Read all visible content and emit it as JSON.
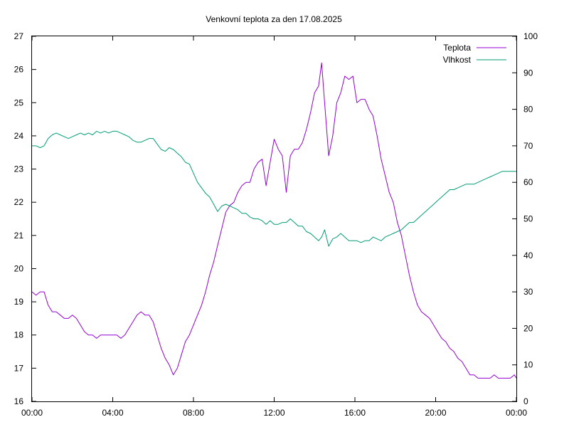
{
  "chart_data": {
    "type": "line",
    "title": "Venkovní teplota za den 17.08.2025",
    "xlabel": "",
    "ylabel": "",
    "y2label": "",
    "x_ticks": [
      "00:00",
      "04:00",
      "08:00",
      "12:00",
      "16:00",
      "20:00",
      "00:00"
    ],
    "xlim_hours": [
      0,
      24
    ],
    "ylim": [
      16,
      27
    ],
    "y_ticks": [
      16,
      17,
      18,
      19,
      20,
      21,
      22,
      23,
      24,
      25,
      26,
      27
    ],
    "y2lim": [
      0,
      100
    ],
    "y2_ticks": [
      0,
      10,
      20,
      30,
      40,
      50,
      60,
      70,
      80,
      90,
      100
    ],
    "grid": false,
    "legend_position": "top-right",
    "series": [
      {
        "name": "Teplota",
        "axis": "left",
        "color": "#9400d3",
        "x": [
          0,
          0.2,
          0.4,
          0.6,
          0.8,
          1.0,
          1.2,
          1.4,
          1.6,
          1.8,
          2.0,
          2.2,
          2.4,
          2.6,
          2.8,
          3.0,
          3.2,
          3.4,
          3.6,
          3.8,
          4.0,
          4.2,
          4.4,
          4.6,
          4.8,
          5.0,
          5.2,
          5.4,
          5.6,
          5.8,
          6.0,
          6.2,
          6.4,
          6.6,
          6.8,
          7.0,
          7.2,
          7.4,
          7.6,
          7.8,
          8.0,
          8.2,
          8.4,
          8.6,
          8.8,
          9.0,
          9.2,
          9.4,
          9.6,
          9.8,
          10.0,
          10.2,
          10.4,
          10.6,
          10.8,
          11.0,
          11.2,
          11.4,
          11.6,
          11.8,
          12.0,
          12.2,
          12.4,
          12.6,
          12.8,
          13.0,
          13.2,
          13.4,
          13.6,
          13.8,
          14.0,
          14.2,
          14.35,
          14.5,
          14.7,
          14.9,
          15.1,
          15.3,
          15.5,
          15.7,
          15.9,
          16.1,
          16.3,
          16.5,
          16.7,
          16.9,
          17.1,
          17.3,
          17.5,
          17.7,
          17.9,
          18.1,
          18.3,
          18.5,
          18.7,
          18.9,
          19.1,
          19.3,
          19.5,
          19.7,
          19.9,
          20.1,
          20.3,
          20.5,
          20.7,
          20.9,
          21.1,
          21.3,
          21.5,
          21.7,
          21.9,
          22.1,
          22.3,
          22.5,
          22.7,
          22.9,
          23.1,
          23.3,
          23.5,
          23.7,
          23.9,
          24.0
        ],
        "values": [
          19.3,
          19.2,
          19.3,
          19.3,
          18.9,
          18.7,
          18.7,
          18.6,
          18.5,
          18.5,
          18.6,
          18.5,
          18.3,
          18.1,
          18.0,
          18.0,
          17.9,
          18.0,
          18.0,
          18.0,
          18.0,
          18.0,
          17.9,
          18.0,
          18.2,
          18.4,
          18.6,
          18.7,
          18.6,
          18.6,
          18.4,
          18.0,
          17.6,
          17.3,
          17.1,
          16.8,
          17.0,
          17.4,
          17.8,
          18.0,
          18.3,
          18.6,
          18.9,
          19.3,
          19.8,
          20.2,
          20.7,
          21.2,
          21.7,
          21.9,
          22.0,
          22.3,
          22.5,
          22.6,
          22.6,
          23.0,
          23.2,
          23.3,
          22.5,
          23.2,
          23.9,
          23.6,
          23.4,
          22.3,
          23.4,
          23.6,
          23.6,
          23.8,
          24.2,
          24.7,
          25.3,
          25.5,
          26.2,
          25.0,
          23.4,
          24.0,
          25.0,
          25.3,
          25.8,
          25.7,
          25.8,
          25.0,
          25.1,
          25.1,
          24.8,
          24.6,
          24.0,
          23.3,
          22.8,
          22.3,
          22.0,
          21.4,
          21.0,
          20.4,
          19.8,
          19.3,
          18.9,
          18.7,
          18.6,
          18.5,
          18.3,
          18.1,
          17.9,
          17.8,
          17.6,
          17.5,
          17.3,
          17.2,
          17.0,
          16.8,
          16.8,
          16.7,
          16.7,
          16.7,
          16.7,
          16.8,
          16.7,
          16.7,
          16.7,
          16.7,
          16.8,
          16.7
        ],
        "label_type": "estimated"
      },
      {
        "name": "Vlhkost",
        "axis": "right",
        "color": "#009e73",
        "x": [
          0,
          0.2,
          0.4,
          0.6,
          0.8,
          1.0,
          1.2,
          1.4,
          1.6,
          1.8,
          2.0,
          2.2,
          2.4,
          2.6,
          2.8,
          3.0,
          3.2,
          3.4,
          3.6,
          3.8,
          4.0,
          4.2,
          4.4,
          4.6,
          4.8,
          5.0,
          5.2,
          5.4,
          5.6,
          5.8,
          6.0,
          6.2,
          6.4,
          6.6,
          6.8,
          7.0,
          7.2,
          7.4,
          7.6,
          7.8,
          8.0,
          8.2,
          8.4,
          8.6,
          8.8,
          9.0,
          9.2,
          9.4,
          9.6,
          9.8,
          10.0,
          10.2,
          10.4,
          10.6,
          10.8,
          11.0,
          11.2,
          11.4,
          11.6,
          11.8,
          12.0,
          12.2,
          12.4,
          12.6,
          12.8,
          13.0,
          13.2,
          13.4,
          13.6,
          13.8,
          14.0,
          14.2,
          14.35,
          14.5,
          14.7,
          14.9,
          15.1,
          15.3,
          15.5,
          15.7,
          15.9,
          16.1,
          16.3,
          16.5,
          16.7,
          16.9,
          17.1,
          17.3,
          17.5,
          17.7,
          17.9,
          18.1,
          18.3,
          18.5,
          18.7,
          18.9,
          19.1,
          19.3,
          19.5,
          19.7,
          19.9,
          20.1,
          20.3,
          20.5,
          20.7,
          20.9,
          21.1,
          21.3,
          21.5,
          21.7,
          21.9,
          22.1,
          22.3,
          22.5,
          22.7,
          22.9,
          23.1,
          23.3,
          23.5,
          23.7,
          23.9,
          24.0
        ],
        "values": [
          70,
          70,
          69.5,
          70,
          72,
          73,
          73.5,
          73,
          72.5,
          72,
          72.5,
          73,
          73.5,
          73,
          73.5,
          73,
          74,
          73.5,
          74,
          73.5,
          74,
          74,
          73.5,
          73,
          72.5,
          71.5,
          71,
          71,
          71.5,
          72,
          72,
          70.5,
          69,
          68.5,
          69.5,
          69,
          68,
          67,
          65.5,
          65,
          62.5,
          60,
          58.5,
          57,
          56,
          54,
          52,
          53.5,
          54,
          53.5,
          53,
          52.5,
          51.5,
          51.5,
          50.5,
          50,
          50,
          49.5,
          48.5,
          49.5,
          48.5,
          48.5,
          49,
          49,
          50,
          49,
          48,
          48,
          46.5,
          46,
          45,
          44,
          45,
          47,
          42.5,
          44.5,
          45,
          46,
          45,
          44,
          44,
          44,
          43.5,
          44,
          44,
          45,
          44.5,
          44,
          45,
          45.5,
          46,
          46.5,
          47,
          48,
          49,
          49,
          50,
          51,
          52,
          53,
          54,
          55,
          56,
          57,
          58,
          58,
          58.5,
          59,
          59.5,
          59.5,
          59.5,
          60,
          60.5,
          61,
          61.5,
          62,
          62.5,
          63,
          63,
          63,
          63,
          63
        ],
        "label_type": "estimated"
      }
    ]
  }
}
